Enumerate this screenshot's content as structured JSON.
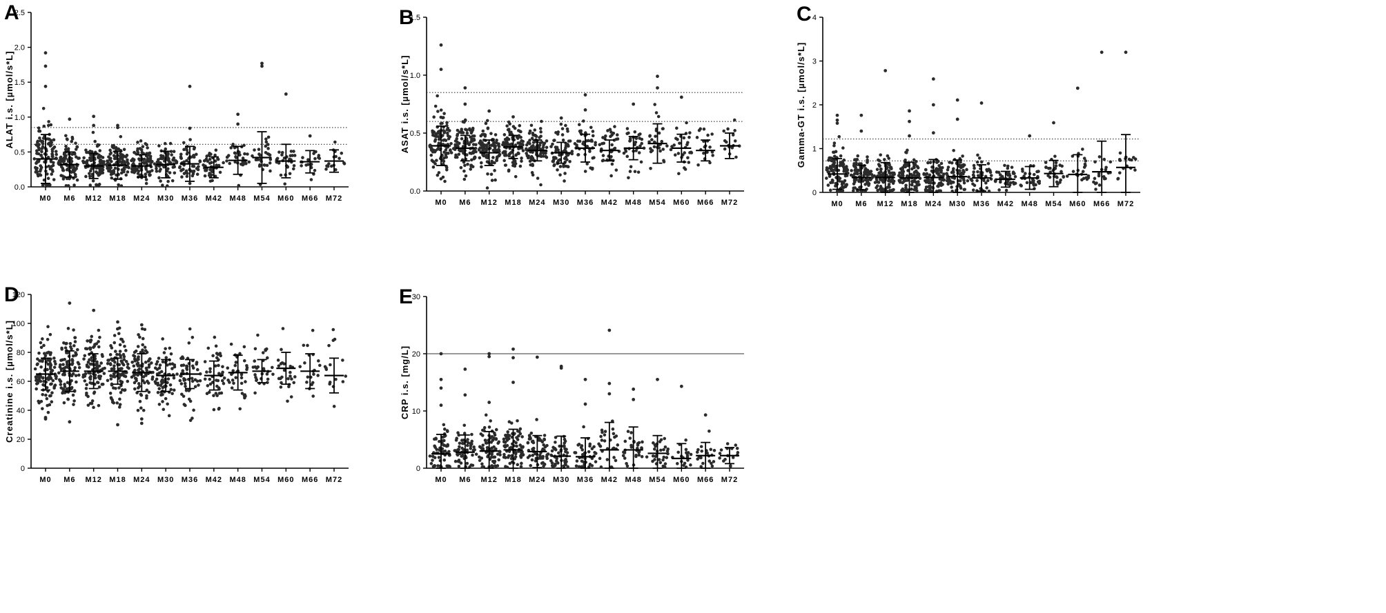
{
  "chart_data": [
    {
      "panel": "A",
      "type": "scatter",
      "ylabel": "ALAT i.s. [µmol/s*L]",
      "ylim": [
        0,
        2.5
      ],
      "yticks": [
        0.0,
        0.5,
        1.0,
        1.5,
        2.0,
        2.5
      ],
      "ytick_labels": [
        "0.0",
        "0.5",
        "1.0",
        "1.5",
        "2.0",
        "2.5"
      ],
      "categories": [
        "M0",
        "M6",
        "M12",
        "M18",
        "M24",
        "M30",
        "M36",
        "M42",
        "M48",
        "M54",
        "M60",
        "M66",
        "M72"
      ],
      "mean": [
        0.4,
        0.32,
        0.3,
        0.31,
        0.3,
        0.32,
        0.33,
        0.28,
        0.38,
        0.42,
        0.37,
        0.36,
        0.37
      ],
      "sd": [
        0.35,
        0.18,
        0.18,
        0.2,
        0.16,
        0.19,
        0.25,
        0.15,
        0.2,
        0.37,
        0.24,
        0.16,
        0.16
      ],
      "n": [
        110,
        100,
        100,
        100,
        90,
        70,
        55,
        45,
        35,
        30,
        30,
        20,
        16
      ],
      "spread": [
        0.55,
        0.35,
        0.33,
        0.33,
        0.29,
        0.28,
        0.3,
        0.22,
        0.28,
        0.32,
        0.29,
        0.22,
        0.22
      ],
      "outliers": [
        [
          0,
          1.92
        ],
        [
          0,
          1.73
        ],
        [
          0,
          1.44
        ],
        [
          1,
          0.97
        ],
        [
          2,
          1.01
        ],
        [
          2,
          0.88
        ],
        [
          3,
          0.88
        ],
        [
          3,
          0.85
        ],
        [
          6,
          1.44
        ],
        [
          6,
          0.84
        ],
        [
          8,
          1.04
        ],
        [
          8,
          0.9
        ],
        [
          9,
          1.77
        ],
        [
          9,
          1.73
        ],
        [
          10,
          1.33
        ],
        [
          11,
          0.73
        ]
      ],
      "reference_lines": [
        {
          "value": 0.85,
          "style": "dotted"
        },
        {
          "value": 0.61,
          "style": "dotted"
        }
      ]
    },
    {
      "panel": "B",
      "type": "scatter",
      "ylabel": "ASAT i.s. [µmol/s*L]",
      "ylim": [
        0,
        1.5
      ],
      "yticks": [
        0.0,
        0.5,
        1.0,
        1.5
      ],
      "ytick_labels": [
        "0.0",
        "0.5",
        "1.0",
        "1.5"
      ],
      "categories": [
        "M0",
        "M6",
        "M12",
        "M18",
        "M24",
        "M30",
        "M36",
        "M42",
        "M48",
        "M54",
        "M60",
        "M66",
        "M72"
      ],
      "mean": [
        0.39,
        0.37,
        0.33,
        0.38,
        0.35,
        0.33,
        0.37,
        0.35,
        0.37,
        0.41,
        0.37,
        0.35,
        0.39
      ],
      "sd": [
        0.17,
        0.11,
        0.11,
        0.1,
        0.09,
        0.09,
        0.12,
        0.09,
        0.1,
        0.17,
        0.12,
        0.09,
        0.11
      ],
      "n": [
        110,
        100,
        100,
        100,
        90,
        70,
        45,
        40,
        35,
        30,
        30,
        20,
        16
      ],
      "spread": [
        0.3,
        0.24,
        0.22,
        0.22,
        0.2,
        0.2,
        0.24,
        0.2,
        0.2,
        0.26,
        0.22,
        0.18,
        0.18
      ],
      "outliers": [
        [
          0,
          1.26
        ],
        [
          0,
          1.05
        ],
        [
          1,
          0.89
        ],
        [
          1,
          0.75
        ],
        [
          2,
          0.69
        ],
        [
          3,
          0.64
        ],
        [
          5,
          0.63
        ],
        [
          6,
          0.83
        ],
        [
          6,
          0.7
        ],
        [
          8,
          0.75
        ],
        [
          9,
          0.99
        ],
        [
          9,
          0.89
        ],
        [
          10,
          0.81
        ]
      ],
      "reference_lines": [
        {
          "value": 0.85,
          "style": "dotted"
        },
        {
          "value": 0.6,
          "style": "dotted"
        }
      ]
    },
    {
      "panel": "C",
      "type": "scatter",
      "ylabel": "Gamma-GT i.s. [µmol/s*L]",
      "ylim": [
        0,
        4
      ],
      "yticks": [
        0,
        1,
        2,
        3,
        4
      ],
      "ytick_labels": [
        "0",
        "1",
        "2",
        "3",
        "4"
      ],
      "categories": [
        "M0",
        "M6",
        "M12",
        "M18",
        "M24",
        "M30",
        "M36",
        "M42",
        "M48",
        "M54",
        "M60",
        "M66",
        "M72"
      ],
      "mean": [
        0.42,
        0.34,
        0.34,
        0.33,
        0.34,
        0.36,
        0.33,
        0.3,
        0.33,
        0.43,
        0.41,
        0.47,
        0.57
      ],
      "sd": [
        0.35,
        0.28,
        0.34,
        0.36,
        0.41,
        0.38,
        0.3,
        0.18,
        0.26,
        0.3,
        0.45,
        0.7,
        0.75
      ],
      "n": [
        110,
        100,
        100,
        100,
        90,
        70,
        45,
        40,
        30,
        30,
        22,
        20,
        16
      ],
      "spread": [
        0.55,
        0.45,
        0.45,
        0.45,
        0.45,
        0.45,
        0.4,
        0.3,
        0.35,
        0.4,
        0.45,
        0.5,
        0.55
      ],
      "outliers": [
        [
          0,
          1.76
        ],
        [
          0,
          1.65
        ],
        [
          0,
          1.58
        ],
        [
          1,
          1.76
        ],
        [
          1,
          1.4
        ],
        [
          2,
          2.78
        ],
        [
          3,
          1.86
        ],
        [
          3,
          1.62
        ],
        [
          3,
          1.29
        ],
        [
          4,
          2.59
        ],
        [
          4,
          2.0
        ],
        [
          4,
          1.36
        ],
        [
          5,
          2.11
        ],
        [
          5,
          1.67
        ],
        [
          6,
          2.04
        ],
        [
          8,
          1.29
        ],
        [
          9,
          1.59
        ],
        [
          10,
          2.38
        ],
        [
          11,
          3.2
        ],
        [
          12,
          3.2
        ]
      ],
      "reference_lines": [
        {
          "value": 1.22,
          "style": "dotted"
        },
        {
          "value": 0.72,
          "style": "dotted"
        }
      ]
    },
    {
      "panel": "D",
      "type": "scatter",
      "ylabel": "Creatinine i.s. [µmol/s*L]",
      "ylim": [
        0,
        120
      ],
      "yticks": [
        0,
        20,
        40,
        60,
        80,
        100,
        120
      ],
      "ytick_labels": [
        "0",
        "20",
        "40",
        "60",
        "80",
        "100",
        "120"
      ],
      "categories": [
        "M0",
        "M6",
        "M12",
        "M18",
        "M24",
        "M30",
        "M36",
        "M42",
        "M48",
        "M54",
        "M60",
        "M66",
        "M72"
      ],
      "mean": [
        65,
        67,
        67,
        67,
        66,
        64,
        65,
        64,
        66,
        67,
        69,
        67,
        64
      ],
      "sd": [
        11,
        14,
        12,
        9,
        13,
        11,
        10,
        10,
        12,
        8,
        11,
        12,
        12
      ],
      "n": [
        100,
        100,
        100,
        100,
        90,
        70,
        55,
        45,
        35,
        30,
        25,
        20,
        16
      ],
      "spread": [
        22,
        22,
        22,
        22,
        22,
        20,
        20,
        20,
        20,
        18,
        20,
        20,
        20
      ],
      "outliers": [
        [
          1,
          114
        ],
        [
          2,
          109
        ],
        [
          3,
          101
        ],
        [
          4,
          99
        ],
        [
          3,
          30
        ],
        [
          4,
          31
        ],
        [
          4,
          34
        ],
        [
          0,
          35
        ],
        [
          1,
          32
        ],
        [
          0,
          34
        ]
      ],
      "reference_lines": []
    },
    {
      "panel": "E",
      "type": "scatter",
      "ylabel": "CRP i.s. [mg/L]",
      "ylim": [
        0,
        30
      ],
      "yticks": [
        0,
        10,
        20,
        30
      ],
      "ytick_labels": [
        "0",
        "10",
        "20",
        "30"
      ],
      "categories": [
        "M0",
        "M6",
        "M12",
        "M18",
        "M24",
        "M30",
        "M36",
        "M42",
        "M48",
        "M54",
        "M60",
        "M66",
        "M72"
      ],
      "mean": [
        2.5,
        2.8,
        3.0,
        3.2,
        2.9,
        2.1,
        2.0,
        3.2,
        3.2,
        2.6,
        1.7,
        2.2,
        2.2
      ],
      "sd": [
        3.4,
        3.0,
        3.4,
        3.6,
        2.8,
        3.5,
        3.3,
        4.8,
        4.0,
        3.1,
        2.6,
        2.3,
        1.4
      ],
      "n": [
        60,
        60,
        80,
        80,
        60,
        50,
        40,
        30,
        30,
        30,
        20,
        20,
        16
      ],
      "spread": [
        4.5,
        4.0,
        4.5,
        4.5,
        4.0,
        3.5,
        3.5,
        4.5,
        4.0,
        3.5,
        2.5,
        3.0,
        2.5
      ],
      "outliers": [
        [
          0,
          20.0
        ],
        [
          0,
          15.5
        ],
        [
          0,
          14.0
        ],
        [
          0,
          11.0
        ],
        [
          1,
          17.3
        ],
        [
          1,
          12.8
        ],
        [
          2,
          20.0
        ],
        [
          2,
          19.5
        ],
        [
          2,
          11.5
        ],
        [
          3,
          20.8
        ],
        [
          3,
          19.3
        ],
        [
          3,
          15.0
        ],
        [
          4,
          19.4
        ],
        [
          5,
          17.8
        ],
        [
          5,
          17.5
        ],
        [
          6,
          15.5
        ],
        [
          6,
          11.2
        ],
        [
          7,
          24.1
        ],
        [
          7,
          14.8
        ],
        [
          7,
          13.0
        ],
        [
          8,
          13.8
        ],
        [
          8,
          12.0
        ],
        [
          9,
          15.5
        ],
        [
          10,
          14.3
        ],
        [
          11,
          9.3
        ]
      ],
      "reference_lines": [
        {
          "value": 20,
          "style": "solid"
        }
      ]
    }
  ]
}
